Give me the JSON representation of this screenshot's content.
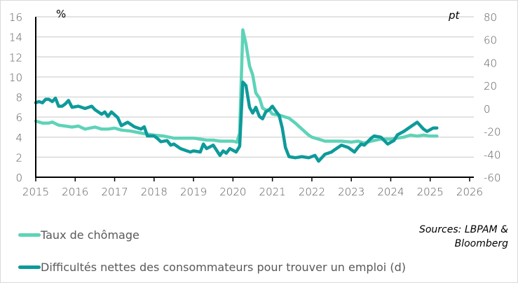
{
  "chart_data": {
    "type": "line",
    "title": "",
    "left_axis": {
      "unit_label": "%",
      "ylim": [
        0,
        16
      ],
      "ticks": [
        0,
        2,
        4,
        6,
        8,
        10,
        12,
        14,
        16
      ]
    },
    "right_axis": {
      "unit_label": "pt",
      "ylim": [
        -60,
        80
      ],
      "ticks": [
        -60,
        -40,
        -20,
        0,
        20,
        40,
        60,
        80
      ]
    },
    "x_axis": {
      "ticks": [
        "2015",
        "2016",
        "2017",
        "2018",
        "2019",
        "2020",
        "2021",
        "2022",
        "2023",
        "2024",
        "2025",
        "2026"
      ],
      "xlim": [
        2015,
        2026
      ]
    },
    "grid": true,
    "legend_position": "bottom",
    "series": [
      {
        "name": "Taux de chômage",
        "axis": "left",
        "color": "#5ed3b8",
        "points": [
          [
            2015.0,
            5.6
          ],
          [
            2015.17,
            5.4
          ],
          [
            2015.33,
            5.4
          ],
          [
            2015.42,
            5.5
          ],
          [
            2015.58,
            5.2
          ],
          [
            2015.75,
            5.1
          ],
          [
            2015.92,
            5.0
          ],
          [
            2016.08,
            5.1
          ],
          [
            2016.25,
            4.8
          ],
          [
            2016.5,
            5.0
          ],
          [
            2016.67,
            4.8
          ],
          [
            2016.83,
            4.8
          ],
          [
            2017.0,
            4.9
          ],
          [
            2017.17,
            4.7
          ],
          [
            2017.42,
            4.6
          ],
          [
            2017.67,
            4.4
          ],
          [
            2017.83,
            4.3
          ],
          [
            2018.0,
            4.2
          ],
          [
            2018.25,
            4.1
          ],
          [
            2018.5,
            3.9
          ],
          [
            2018.75,
            3.9
          ],
          [
            2019.0,
            3.9
          ],
          [
            2019.17,
            3.8
          ],
          [
            2019.33,
            3.7
          ],
          [
            2019.5,
            3.7
          ],
          [
            2019.67,
            3.6
          ],
          [
            2019.83,
            3.6
          ],
          [
            2020.0,
            3.6
          ],
          [
            2020.1,
            3.5
          ],
          [
            2020.17,
            4.4
          ],
          [
            2020.25,
            14.7
          ],
          [
            2020.33,
            13.3
          ],
          [
            2020.42,
            11.1
          ],
          [
            2020.5,
            10.2
          ],
          [
            2020.58,
            8.4
          ],
          [
            2020.67,
            7.9
          ],
          [
            2020.75,
            6.9
          ],
          [
            2020.83,
            6.7
          ],
          [
            2020.92,
            6.7
          ],
          [
            2021.0,
            6.3
          ],
          [
            2021.17,
            6.2
          ],
          [
            2021.33,
            6.0
          ],
          [
            2021.42,
            5.9
          ],
          [
            2021.58,
            5.4
          ],
          [
            2021.75,
            4.8
          ],
          [
            2021.92,
            4.2
          ],
          [
            2022.0,
            4.0
          ],
          [
            2022.17,
            3.8
          ],
          [
            2022.33,
            3.6
          ],
          [
            2022.5,
            3.6
          ],
          [
            2022.75,
            3.6
          ],
          [
            2023.0,
            3.5
          ],
          [
            2023.17,
            3.6
          ],
          [
            2023.33,
            3.4
          ],
          [
            2023.5,
            3.6
          ],
          [
            2023.75,
            3.8
          ],
          [
            2024.0,
            3.8
          ],
          [
            2024.17,
            3.9
          ],
          [
            2024.33,
            4.0
          ],
          [
            2024.5,
            4.2
          ],
          [
            2024.67,
            4.1
          ],
          [
            2024.83,
            4.2
          ],
          [
            2025.0,
            4.1
          ],
          [
            2025.17,
            4.1
          ]
        ]
      },
      {
        "name": "Difficultés nettes des consommateurs pour trouver un emploi (d)",
        "axis": "right",
        "color": "#0e9a9a",
        "points": [
          [
            2015.0,
            5
          ],
          [
            2015.08,
            6
          ],
          [
            2015.17,
            5
          ],
          [
            2015.25,
            8
          ],
          [
            2015.33,
            8
          ],
          [
            2015.42,
            6
          ],
          [
            2015.5,
            9
          ],
          [
            2015.58,
            2
          ],
          [
            2015.67,
            2
          ],
          [
            2015.75,
            4
          ],
          [
            2015.83,
            7
          ],
          [
            2015.92,
            1
          ],
          [
            2016.08,
            2
          ],
          [
            2016.25,
            0
          ],
          [
            2016.42,
            2
          ],
          [
            2016.5,
            -1
          ],
          [
            2016.67,
            -5
          ],
          [
            2016.75,
            -3
          ],
          [
            2016.83,
            -7
          ],
          [
            2016.92,
            -3
          ],
          [
            2017.08,
            -8
          ],
          [
            2017.17,
            -15
          ],
          [
            2017.33,
            -12
          ],
          [
            2017.5,
            -16
          ],
          [
            2017.67,
            -18
          ],
          [
            2017.75,
            -16
          ],
          [
            2017.83,
            -24
          ],
          [
            2018.0,
            -24
          ],
          [
            2018.08,
            -26
          ],
          [
            2018.17,
            -29
          ],
          [
            2018.33,
            -28
          ],
          [
            2018.42,
            -32
          ],
          [
            2018.5,
            -31
          ],
          [
            2018.67,
            -35
          ],
          [
            2018.83,
            -37
          ],
          [
            2018.92,
            -38
          ],
          [
            2019.0,
            -37
          ],
          [
            2019.17,
            -38
          ],
          [
            2019.25,
            -31
          ],
          [
            2019.33,
            -35
          ],
          [
            2019.5,
            -32
          ],
          [
            2019.67,
            -41
          ],
          [
            2019.75,
            -37
          ],
          [
            2019.83,
            -39
          ],
          [
            2019.92,
            -35
          ],
          [
            2020.08,
            -38
          ],
          [
            2020.17,
            -33
          ],
          [
            2020.25,
            23
          ],
          [
            2020.33,
            20
          ],
          [
            2020.42,
            1
          ],
          [
            2020.5,
            -4
          ],
          [
            2020.58,
            1
          ],
          [
            2020.67,
            -7
          ],
          [
            2020.75,
            -9
          ],
          [
            2020.83,
            -3
          ],
          [
            2020.92,
            -1
          ],
          [
            2021.0,
            2
          ],
          [
            2021.08,
            -2
          ],
          [
            2021.17,
            -6
          ],
          [
            2021.25,
            -17
          ],
          [
            2021.33,
            -34
          ],
          [
            2021.42,
            -42
          ],
          [
            2021.58,
            -43
          ],
          [
            2021.75,
            -42
          ],
          [
            2021.92,
            -43
          ],
          [
            2022.08,
            -41
          ],
          [
            2022.17,
            -46
          ],
          [
            2022.33,
            -40
          ],
          [
            2022.5,
            -38
          ],
          [
            2022.58,
            -36
          ],
          [
            2022.75,
            -32
          ],
          [
            2022.92,
            -34
          ],
          [
            2023.08,
            -38
          ],
          [
            2023.17,
            -34
          ],
          [
            2023.25,
            -31
          ],
          [
            2023.33,
            -32
          ],
          [
            2023.5,
            -26
          ],
          [
            2023.58,
            -24
          ],
          [
            2023.75,
            -25
          ],
          [
            2023.92,
            -31
          ],
          [
            2024.08,
            -28
          ],
          [
            2024.17,
            -23
          ],
          [
            2024.33,
            -20
          ],
          [
            2024.5,
            -16
          ],
          [
            2024.67,
            -12
          ],
          [
            2024.83,
            -18
          ],
          [
            2024.92,
            -20
          ],
          [
            2025.08,
            -17
          ],
          [
            2025.17,
            -17
          ]
        ]
      }
    ],
    "annotations": [
      "Sources: LBPAM & Bloomberg"
    ]
  },
  "labels": {
    "left_unit": "%",
    "right_unit": "pt",
    "left_ticks": [
      "16",
      "14",
      "12",
      "10",
      "8",
      "6",
      "4",
      "2",
      "0"
    ],
    "right_ticks": [
      "80",
      "60",
      "40",
      "20",
      "0",
      "-20",
      "-40",
      "-60"
    ],
    "x_ticks": [
      "2015",
      "2016",
      "2017",
      "2018",
      "2019",
      "2020",
      "2021",
      "2022",
      "2023",
      "2024",
      "2025",
      "2026"
    ]
  },
  "legend": {
    "items": [
      {
        "label": "Taux de chômage",
        "color": "#5ed3b8"
      },
      {
        "label": "Difficultés nettes des consommateurs pour trouver un emploi (d)",
        "color": "#0e9a9a"
      }
    ]
  },
  "sources": {
    "line1": "Sources: LBPAM &",
    "line2": "Bloomberg"
  }
}
